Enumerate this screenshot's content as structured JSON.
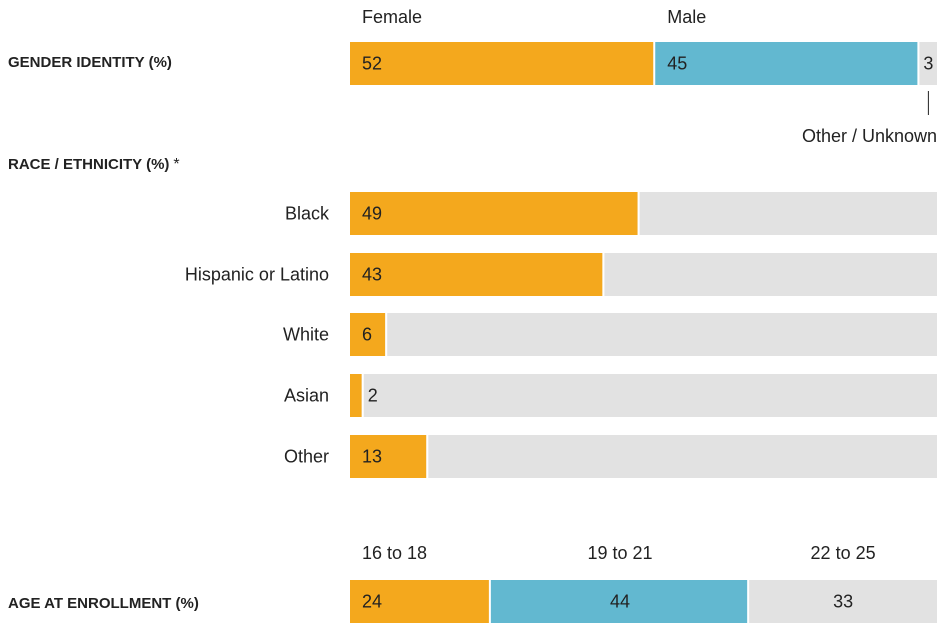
{
  "chart_data": [
    {
      "type": "stacked-bar",
      "title": "GENDER IDENTITY (%)",
      "categories": [
        null
      ],
      "series": [
        {
          "name": "Female",
          "color": "#f4a81d",
          "values": [
            52
          ]
        },
        {
          "name": "Male",
          "color": "#62b8d0",
          "values": [
            45
          ]
        },
        {
          "name": "Other / Unknown",
          "color": "#e2e2e2",
          "values": [
            3
          ]
        }
      ],
      "xlim": [
        0,
        100
      ]
    },
    {
      "type": "bar",
      "title": "RACE / ETHNICITY (%)",
      "note": "*",
      "categories": [
        "Black",
        "Hispanic or Latino",
        "White",
        "Asian",
        "Other"
      ],
      "values": [
        49,
        43,
        6,
        2,
        13
      ],
      "color": "#f4a81d",
      "track_color": "#e2e2e2",
      "xlim": [
        0,
        100
      ]
    },
    {
      "type": "stacked-bar",
      "title": "AGE AT ENROLLMENT (%)",
      "categories": [
        null
      ],
      "series": [
        {
          "name": "16 to 18",
          "color": "#f4a81d",
          "values": [
            24
          ]
        },
        {
          "name": "19 to 21",
          "color": "#62b8d0",
          "values": [
            44
          ]
        },
        {
          "name": "22 to 25",
          "color": "#e2e2e2",
          "values": [
            33
          ]
        }
      ],
      "xlim": [
        0,
        100
      ]
    }
  ]
}
